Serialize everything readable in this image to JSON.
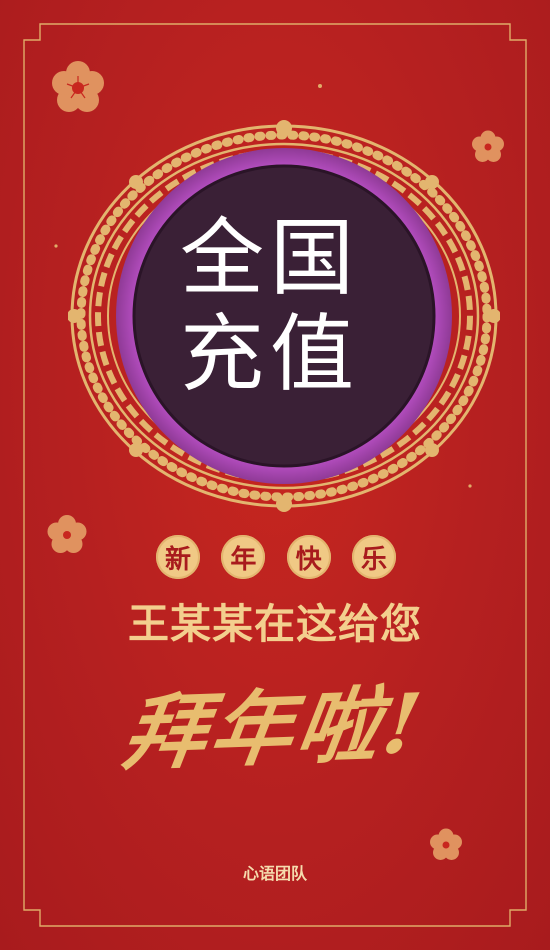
{
  "card": {
    "emblem_text_line1": "全国",
    "emblem_text_line2": "充值",
    "greeting_chars": [
      "新",
      "年",
      "快",
      "乐"
    ],
    "headline": "王某某在这给您",
    "calligraphy": "拜年啦!",
    "team": "心语团队"
  },
  "colors": {
    "background": "#b52020",
    "gold": "#e8bd6f",
    "light_gold": "#f3cf8e",
    "emblem_inner": "#3a2036",
    "emblem_ring": "#b84fbf"
  },
  "icons": {
    "blossom": "blossom-icon",
    "frame": "ornate-frame"
  }
}
